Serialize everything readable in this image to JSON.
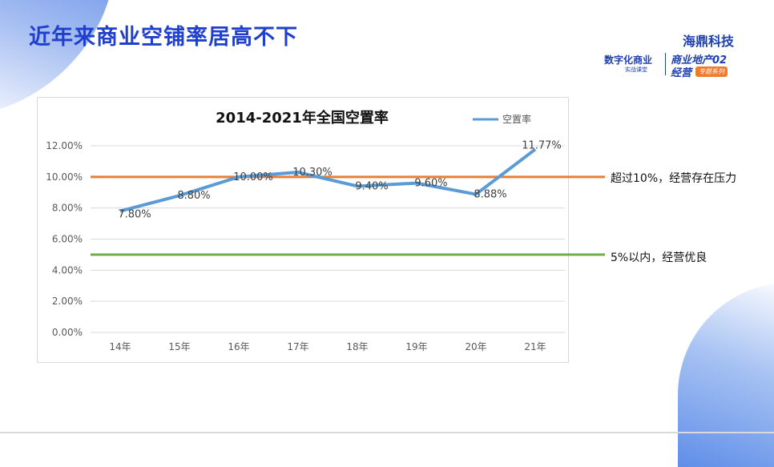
{
  "page_title": "近年来商业空铺率居高不下",
  "logo": {
    "brand": "海鼎科技",
    "course": "数字化商业",
    "course_sub": "实战课堂",
    "series_line1": "商业地产02",
    "series_line2": "经营",
    "series_tag": "专题系列"
  },
  "annotations": [
    {
      "text": "超过10%，经营存在压力",
      "value": 10,
      "color": "#ed7d31"
    },
    {
      "text": "5%以内，经营优良",
      "value": 5,
      "color": "#70ad47"
    }
  ],
  "chart_data": {
    "type": "line",
    "title": "2014-2021年全国空置率",
    "categories": [
      "14年",
      "15年",
      "16年",
      "17年",
      "18年",
      "19年",
      "20年",
      "21年"
    ],
    "series": [
      {
        "name": "空置率",
        "values": [
          7.8,
          8.8,
          10.0,
          10.3,
          9.4,
          9.6,
          8.88,
          11.77
        ],
        "color": "#5b9bd5"
      }
    ],
    "data_labels": [
      "7.80%",
      "8.80%",
      "10.00%",
      "10.30%",
      "9.40%",
      "9.60%",
      "8.88%",
      "11.77%"
    ],
    "yticks": [
      "0.00%",
      "2.00%",
      "4.00%",
      "6.00%",
      "8.00%",
      "10.00%",
      "12.00%"
    ],
    "ylim": [
      0,
      12
    ],
    "grid": true,
    "legend": "top-right"
  }
}
